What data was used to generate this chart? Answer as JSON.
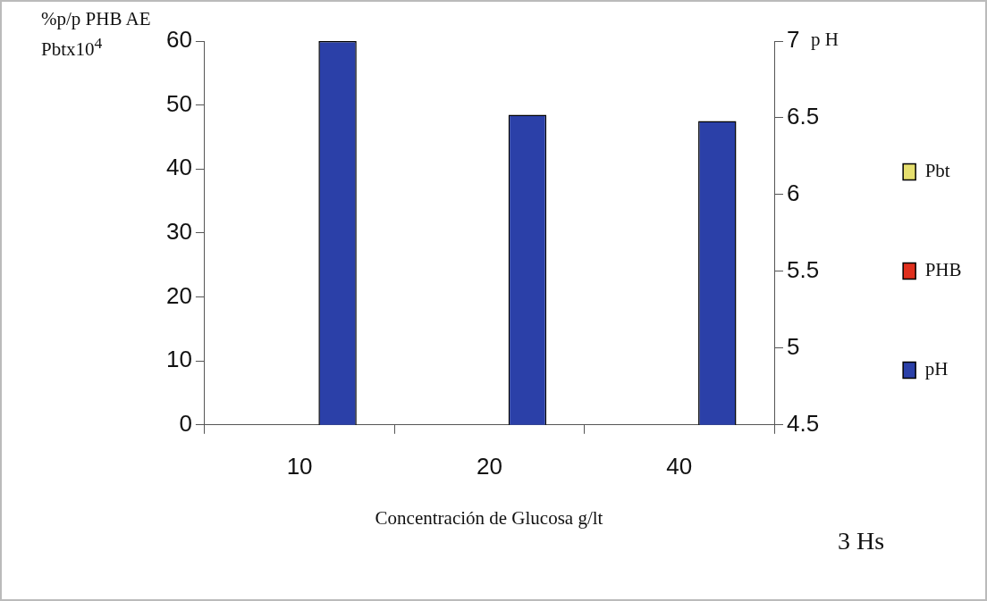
{
  "chart_data": {
    "type": "bar",
    "xlabel": "Concentración de Glucosa g/lt",
    "ylabel": "%p/p PHB AE Pbtx10$^{4}$",
    "y2label": "p H",
    "annotations": [
      "3 Hs"
    ],
    "categories": [
      "10",
      "20",
      "40"
    ],
    "series": [
      {
        "name": "Pbt",
        "color": "#e6df6e",
        "values": [
          0,
          0,
          0
        ]
      },
      {
        "name": "PHB",
        "color": "#e0301e",
        "values": [
          0,
          0,
          0
        ]
      },
      {
        "name": "pH",
        "color": "#2b40a8",
        "values": [
          7,
          6.52,
          6.48
        ],
        "axis": "y2"
      }
    ],
    "ylim": [
      0,
      60
    ],
    "yticks": [
      0,
      10,
      20,
      30,
      40,
      50,
      60
    ],
    "y2lim": [
      4.5,
      7
    ],
    "y2ticks": [
      4.5,
      5,
      5.5,
      6,
      6.5,
      7
    ],
    "grid": false,
    "legend": "right"
  }
}
